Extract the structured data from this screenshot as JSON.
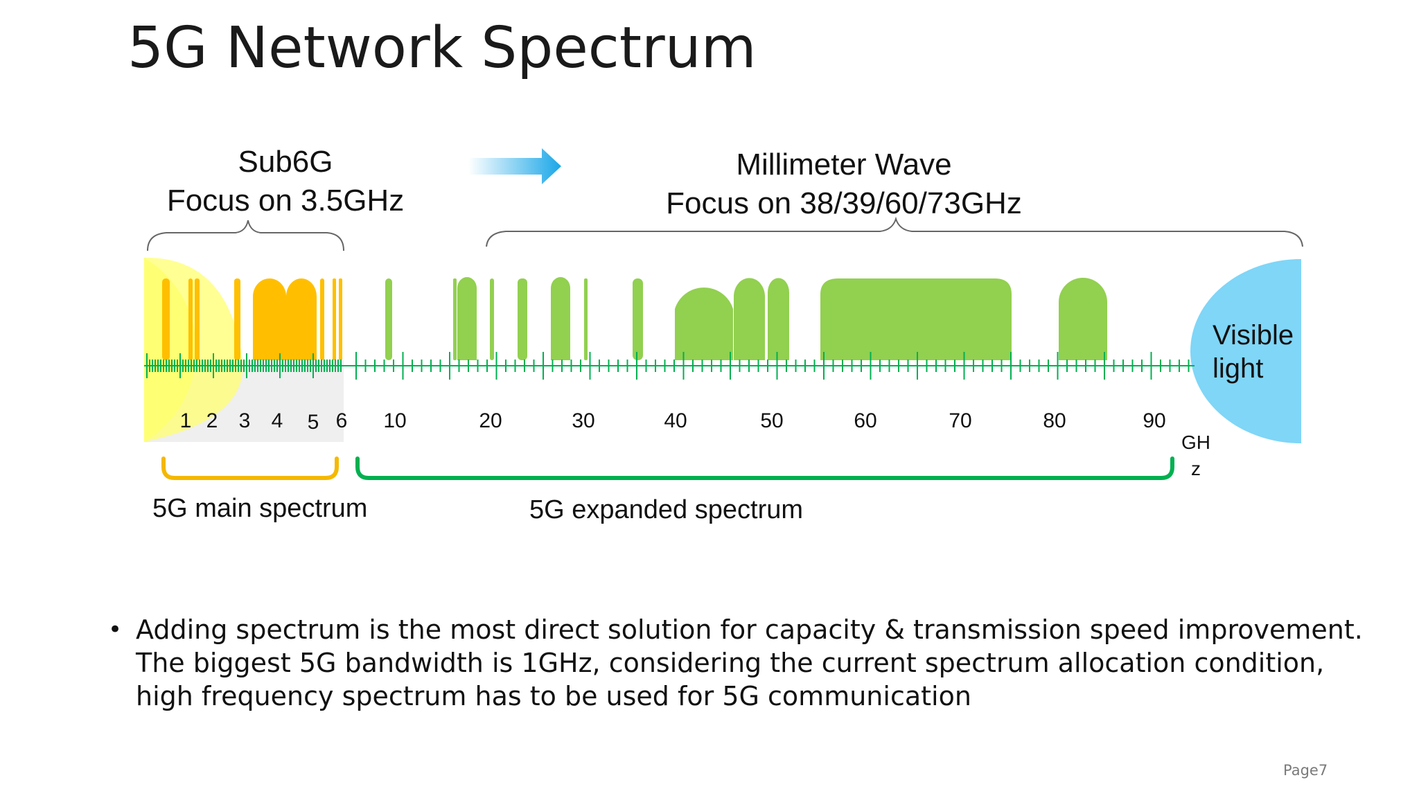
{
  "title": "5G Network Spectrum",
  "sub6g": {
    "line1": "Sub6G",
    "line2": "Focus on 3.5GHz"
  },
  "mmwave": {
    "line1": "Millimeter Wave",
    "line2": "Focus on 38/39/60/73GHz"
  },
  "visible_light": {
    "line1": "Visible",
    "line2": "light"
  },
  "axis": {
    "unit_line1": "GH",
    "unit_line2": "z",
    "low_ticks": [
      "1",
      "2",
      "3",
      "4",
      "5",
      "6"
    ],
    "high_ticks": [
      "10",
      "20",
      "30",
      "40",
      "50",
      "60",
      "70",
      "80",
      "90"
    ]
  },
  "bands": {
    "main_label": "5G main spectrum",
    "expanded_label": "5G expanded spectrum"
  },
  "colors": {
    "sub6_band": "#ffbf00",
    "mmwave_band": "#92d050",
    "yellow_glow": "#ffff66",
    "visible_light": "#7fd6f7",
    "main_bracket": "#f5b800",
    "expanded_bracket": "#00b050",
    "tick": "#00b050",
    "arrow": "#1aa7e8"
  },
  "bullet": {
    "line1": "Adding spectrum is the most direct solution for capacity & transmission speed improvement.",
    "line2": "The biggest 5G bandwidth is 1GHz, considering the current spectrum allocation condition,",
    "line3": "high frequency spectrum has to be used for 5G communication"
  },
  "page": "Page7"
}
